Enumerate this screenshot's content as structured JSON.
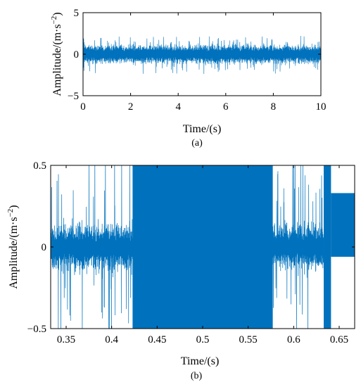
{
  "chart_data": [
    {
      "type": "line",
      "panel_label": "(a)",
      "xlabel": "Time/(s)",
      "ylabel_base": "Amplitude/(m·s",
      "ylabel_sup": "−2",
      "ylabel_close": ")",
      "xlim": [
        0,
        10
      ],
      "ylim": [
        -5,
        5
      ],
      "xticks": [
        0,
        2,
        4,
        6,
        8,
        10
      ],
      "xtick_labels": [
        "0",
        "2",
        "4",
        "6",
        "8",
        "10"
      ],
      "yticks": [
        -5,
        0,
        5
      ],
      "ytick_labels": [
        "−5",
        "0",
        "5"
      ],
      "grid": false,
      "series": [
        {
          "color": "#0072BD",
          "description_values": {
            "typical_envelope": [
              -1.0,
              1.0
            ],
            "peak_envelope": [
              -2.5,
              2.5
            ],
            "start_transient_peak": 2.2
          }
        }
      ]
    },
    {
      "type": "line",
      "panel_label": "(b)",
      "xlabel": "Time/(s)",
      "ylabel_base": "Amplitude/(m·s",
      "ylabel_sup": "−2",
      "ylabel_close": ")",
      "xlim": [
        0.333,
        0.667
      ],
      "ylim": [
        -0.5,
        0.5
      ],
      "xticks": [
        0.35,
        0.4,
        0.45,
        0.5,
        0.55,
        0.6,
        0.65
      ],
      "xtick_labels": [
        "0.35",
        "0.4",
        "0.45",
        "0.5",
        "0.55",
        "0.6",
        "0.65"
      ],
      "yticks": [
        -0.5,
        0,
        0.5
      ],
      "ytick_labels": [
        "−0.5",
        "0",
        "0.5"
      ],
      "grid": false,
      "series": [
        {
          "color": "#0072BD",
          "segments": [
            {
              "x_start": 0.333,
              "x_end": 0.423,
              "kind": "noisy",
              "base_amp": 0.12,
              "burst_max": 0.5
            },
            {
              "x_start": 0.423,
              "x_end": 0.577,
              "kind": "saturated",
              "y_min": -0.5,
              "y_max": 0.5
            },
            {
              "x_start": 0.577,
              "x_end": 0.633,
              "kind": "noisy",
              "base_amp": 0.12,
              "burst_max": 0.5
            },
            {
              "x_start": 0.633,
              "x_end": 0.641,
              "kind": "saturated",
              "y_min": -0.5,
              "y_max": 0.5
            },
            {
              "x_start": 0.641,
              "x_end": 0.667,
              "kind": "dense",
              "y_min": -0.06,
              "y_max": 0.33
            }
          ]
        }
      ]
    }
  ]
}
